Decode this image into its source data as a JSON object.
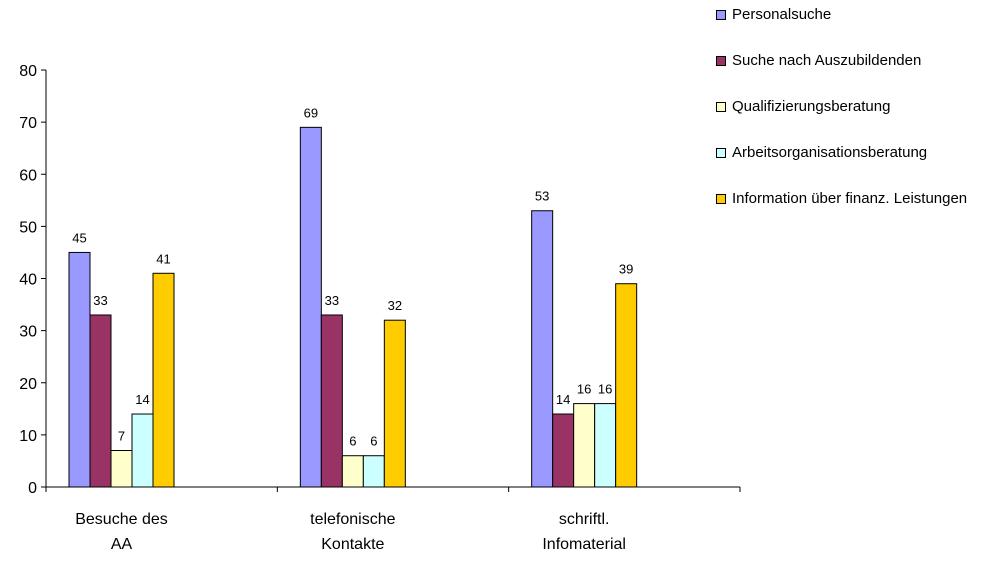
{
  "chart_data": {
    "type": "bar",
    "categories": [
      [
        "Besuche des",
        "AA"
      ],
      [
        "telefonische",
        "Kontakte"
      ],
      [
        "schriftl.",
        "Infomaterial"
      ]
    ],
    "series": [
      {
        "name": "Personalsuche",
        "color": "#9999ff",
        "values": [
          45,
          69,
          53
        ]
      },
      {
        "name": "Suche nach Auszubildenden",
        "color": "#993366",
        "values": [
          33,
          33,
          14
        ]
      },
      {
        "name": "Qualifizierungsberatung",
        "color": "#ffffcc",
        "values": [
          7,
          6,
          16
        ]
      },
      {
        "name": "Arbeitsorganisationsberatung",
        "color": "#ccffff",
        "values": [
          14,
          6,
          16
        ]
      },
      {
        "name": "Information über finanz. Leistungen",
        "color": "#ffcc00",
        "values": [
          41,
          32,
          39
        ]
      }
    ],
    "ylim": [
      0,
      80
    ],
    "yticks": [
      0,
      10,
      20,
      30,
      40,
      50,
      60,
      70,
      80
    ],
    "grid": false,
    "legend": "top-right",
    "xlabel": "",
    "ylabel": ""
  }
}
